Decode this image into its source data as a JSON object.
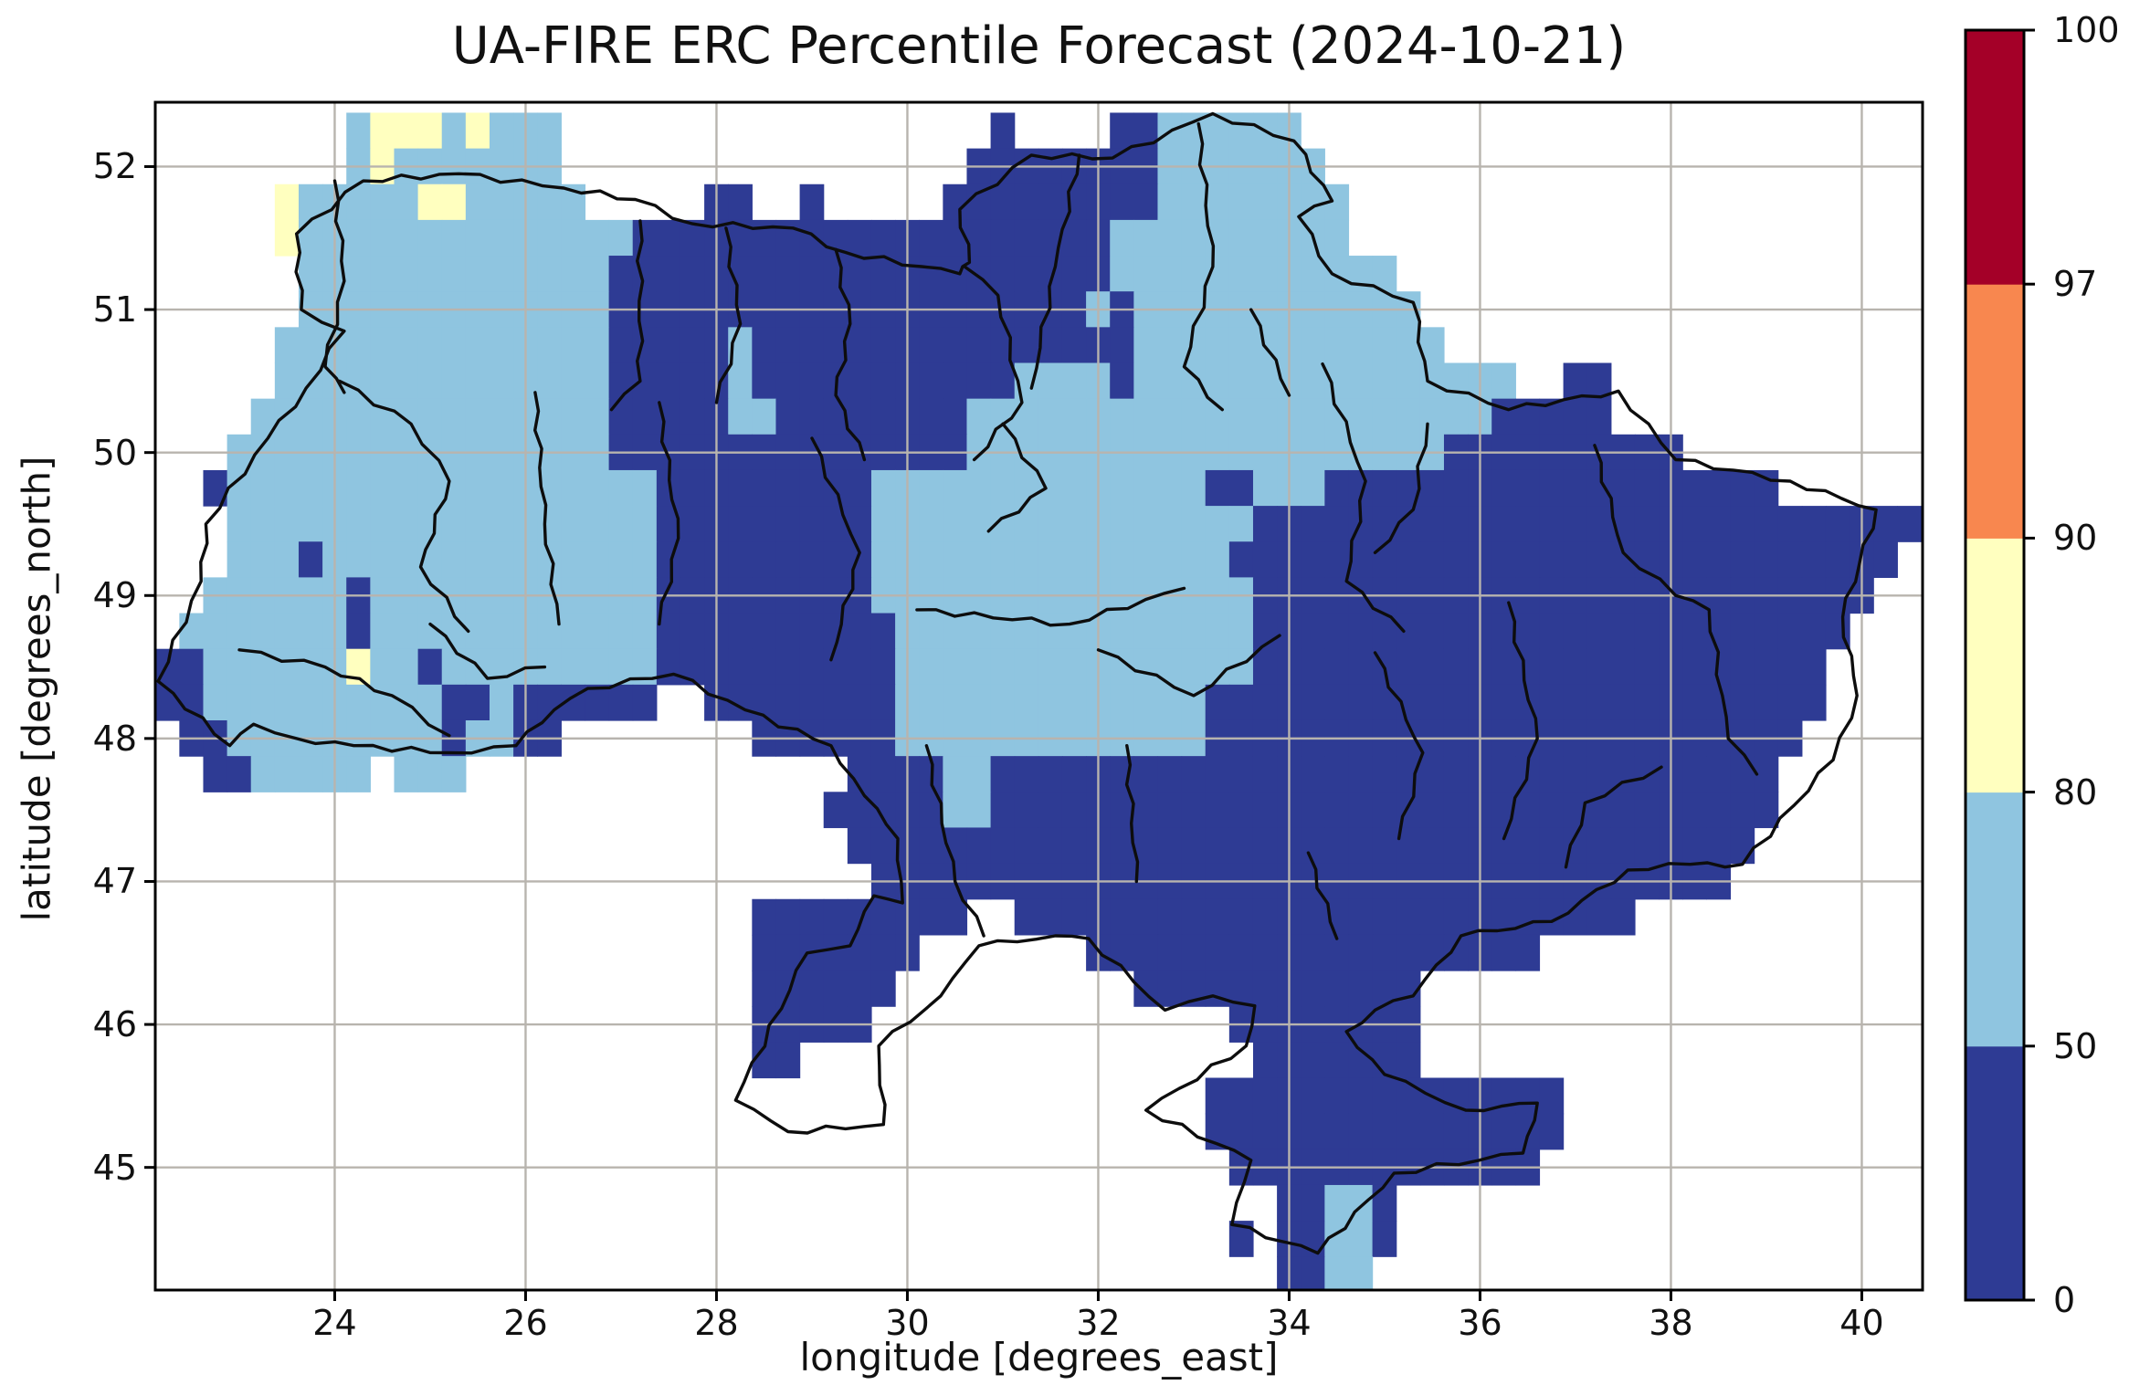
{
  "title": "UA-FIRE ERC Percentile Forecast (2024-10-21)",
  "axes": {
    "xlabel": "longitude [degrees_east]",
    "ylabel": "latitude [degrees_north]",
    "x_ticks": [
      24,
      26,
      28,
      30,
      32,
      34,
      36,
      38,
      40
    ],
    "y_ticks": [
      52,
      51,
      50,
      49,
      48,
      47,
      46,
      45
    ],
    "x_range": [
      22.12,
      40.64
    ],
    "y_range": [
      44.14,
      52.45
    ],
    "grid": true
  },
  "colorbar": {
    "tick_labels": [
      "0",
      "50",
      "80",
      "90",
      "97",
      "100"
    ],
    "segment_colors_bottom_to_top": [
      "#2e3b94",
      "#8fc5e0",
      "#ffffbf",
      "#f8874f",
      "#a40028"
    ],
    "orientation": "vertical"
  },
  "colors": {
    "dark_blue": "#2e3b94",
    "light_blue": "#8fc5e0",
    "pale_yellow": "#ffffbf",
    "orange": "#f8874f",
    "dark_red": "#a40028",
    "gridline": "#b8b4ae",
    "border": "#0d0d0d",
    "frame": "#000000",
    "background": "#ffffff"
  },
  "chart_data": {
    "type": "heatmap",
    "title": "UA-FIRE ERC Percentile Forecast (2024-10-21)",
    "xlabel": "longitude [degrees_east]",
    "ylabel": "latitude [degrees_north]",
    "units": "ERC percentile",
    "levels": [
      0,
      50,
      80,
      90,
      97,
      100
    ],
    "value_classes": {
      "d": "0-50",
      "l": "50-80",
      "y": "80-90",
      ".": "no data"
    },
    "class_colors": {
      "d": "#2e3b94",
      "l": "#8fc5e0",
      "y": "#ffffbf"
    },
    "grid_origin": {
      "lon_center_col0": 22.25,
      "lat_center_row0": 52.25
    },
    "cell_size_deg": 0.25,
    "n_cols": 74,
    "n_rows": 33,
    "rows_rle": [
      "8.1l3y1l1y3l18.1d4.2d6l26.",
      "8.1l1y7l17.8d7l25.",
      "5.1y5l2y5l5.2d2.1d5.9d8l24.",
      "5.1y14l20d10l24.",
      "6.13l21d12l22.",
      "6.13l20d1l1d12l21.",
      "5.14l5d1l16d13l20.",
      "5.14l5d1l11d4l1d16l2.2d13.",
      "4.15l5d2l8d22l5d13.",
      "3.16l15d20l10d10.",
      "2.1d18l9d14l2d3l19d6.",
      "3.18l9d16l28d",
      "3.3l1d14l9d15l28d1.",
      "2.6l1d12l9d16l26d2.",
      "1.7l1d12l10d15l25d3.",
      "2d6l1y2l1d9l10d15l24d4.",
      "2d10l2d1l6d2.8d13l26d4.",
      "1.2d9l1d2l2d8.6d13l25d5.",
      "2.2d5l1.3l16.4d2l33d6.",
      "28.5d2l33d6.",
      "29.38d7.",
      "30.36d8.",
      "25.9d2.26d12.",
      "25.7d7.19d16.",
      "25.6d10.12d21.",
      "25.5d15.8d21.",
      "25.2d19.7d21.",
      "44.15d15.",
      "44.15d15.",
      "45.13d16.",
      "47.2d2l1d22.",
      "45.1d1.2d2l1d22.",
      "47.2d2l23."
    ]
  }
}
